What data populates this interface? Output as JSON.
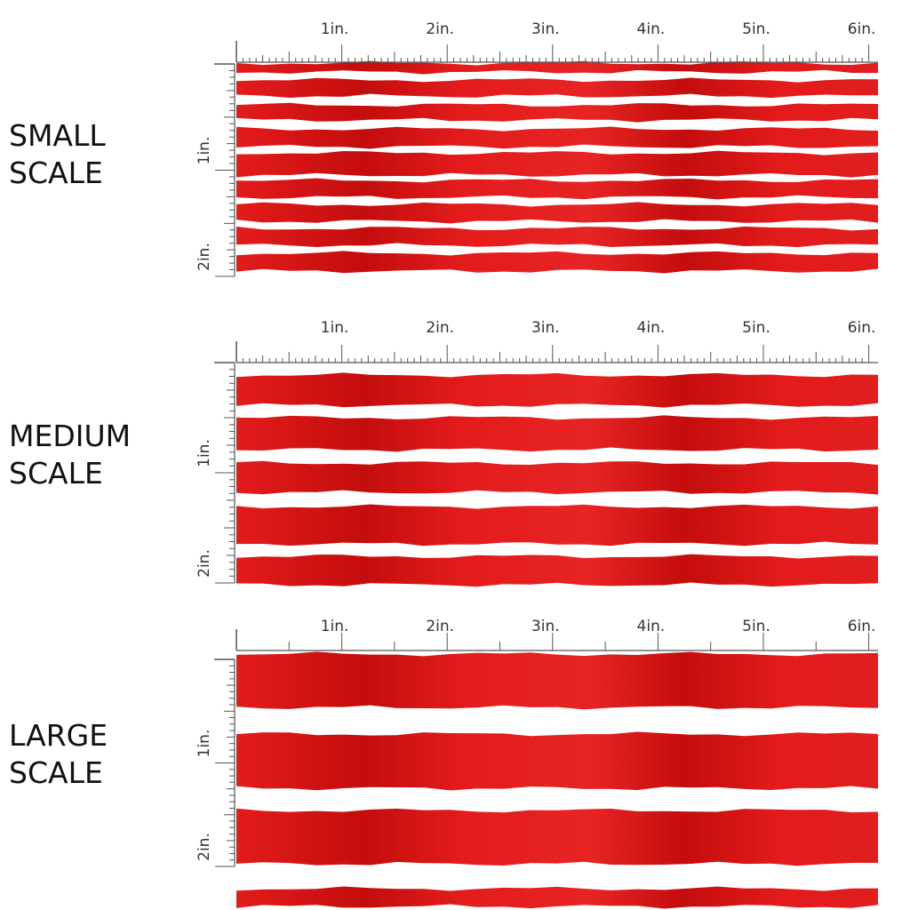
{
  "panels": [
    {
      "label_line1": "SMALL",
      "label_line2": "SCALE",
      "scale": "small",
      "stripe_count": 9
    },
    {
      "label_line1": "MEDIUM",
      "label_line2": "SCALE",
      "scale": "medium",
      "stripe_count": 5
    },
    {
      "label_line1": "LARGE",
      "label_line2": "SCALE",
      "scale": "large",
      "stripe_count": 4
    }
  ],
  "ruler": {
    "horizontal_labels": [
      "1in.",
      "2in.",
      "3in.",
      "4in.",
      "5in.",
      "6in."
    ],
    "vertical_labels": [
      "1in.",
      "2in."
    ]
  },
  "colors": {
    "stripe_red": "#e31b1b",
    "stripe_dark": "#c40d0d",
    "background": "#ffffff",
    "ruler": "#555555"
  }
}
